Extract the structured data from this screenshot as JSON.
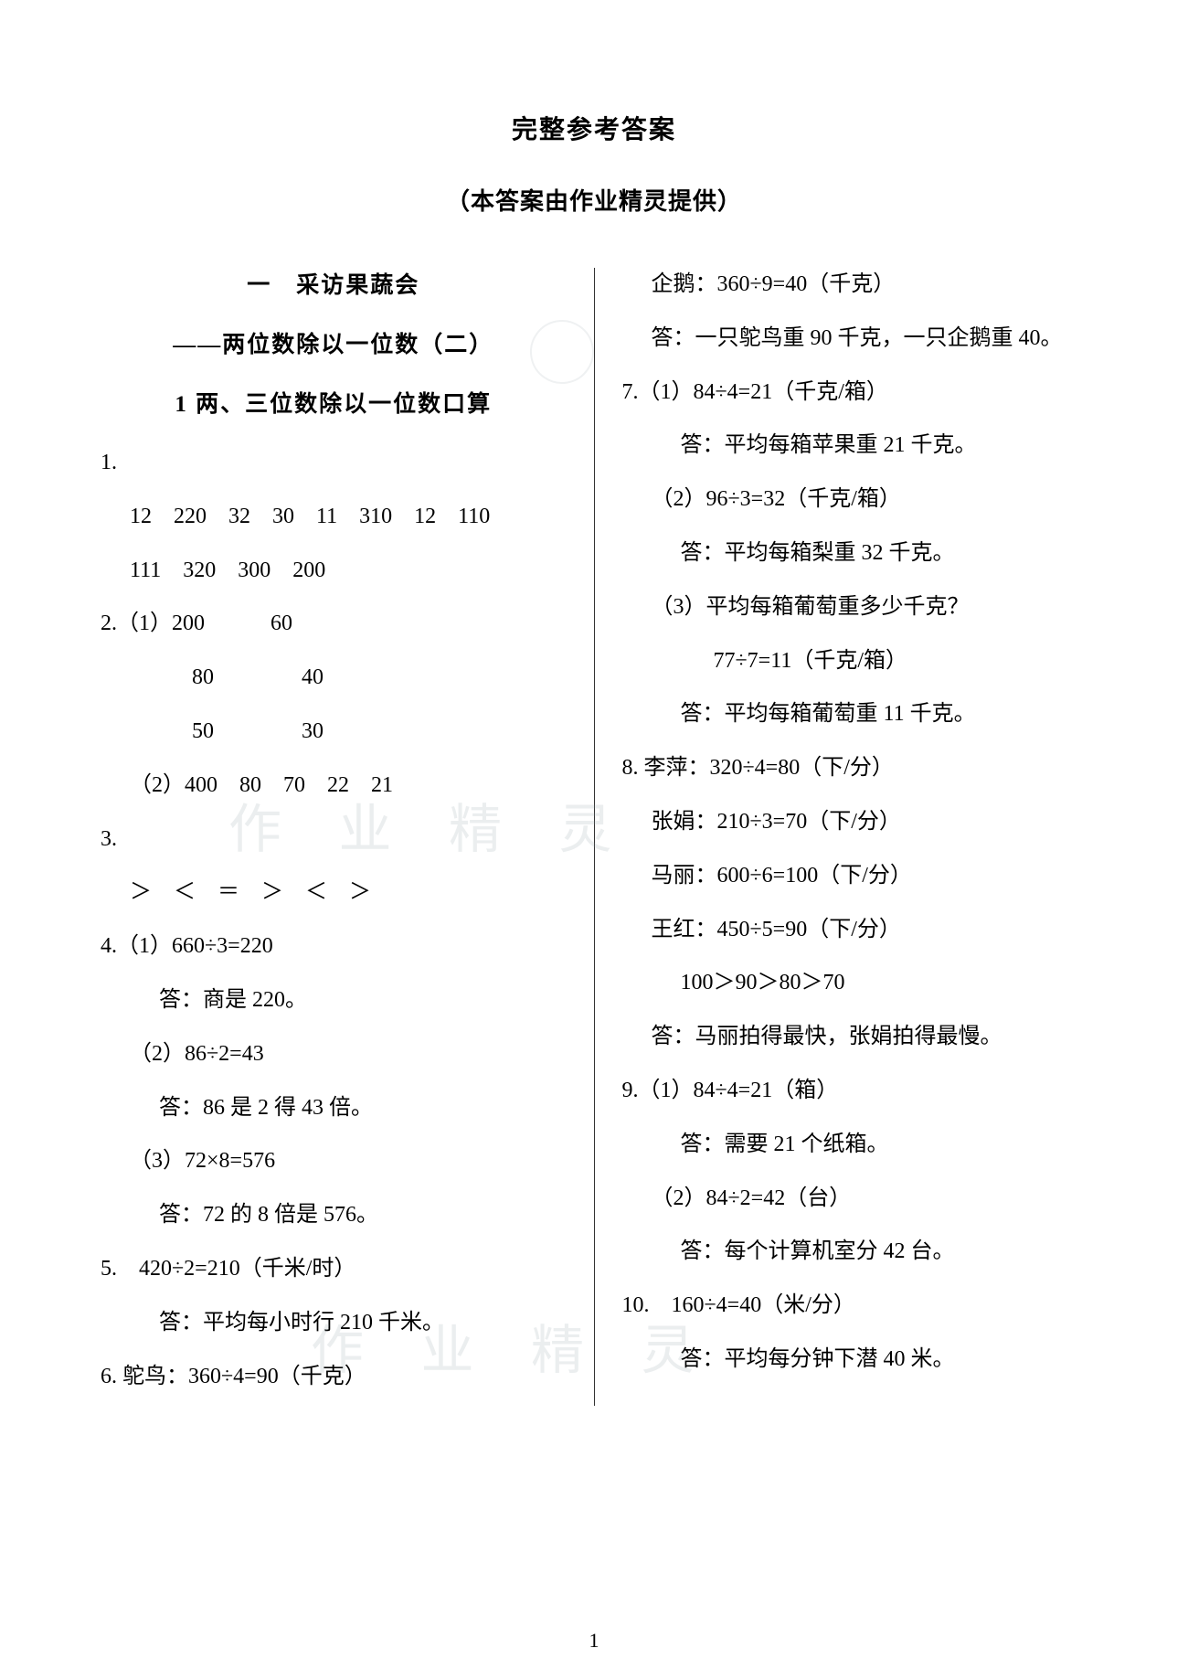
{
  "title": "完整参考答案",
  "subtitle": "（本答案由作业精灵提供）",
  "watermark": "作 业 精 灵",
  "pagenum": "1",
  "left": {
    "h1": "一　采访果蔬会",
    "h2": "——两位数除以一位数（二）",
    "h3": "1 两、三位数除以一位数口算",
    "q1_label": "1.",
    "q1_row1": "12　220　32　30　11　310　12　110",
    "q1_row2": "111　320　300　200",
    "q2_label": "2.（1）200　　　60",
    "q2_row2": "80　　　　40",
    "q2_row3": "50　　　　30",
    "q2_row4": "（2）400　80　70　22　21",
    "q3_label": "3.",
    "q3_row1": "＞　＜　＝　＞　＜　＞",
    "q4_label": "4.（1）660÷3=220",
    "q4_a1": "答：商是 220。",
    "q4_2": "（2）86÷2=43",
    "q4_a2": "答：86 是 2 得 43 倍。",
    "q4_3": "（3）72×8=576",
    "q4_a3": "答：72 的 8 倍是 576。",
    "q5": "5.　420÷2=210（千米/时）",
    "q5_a": "答：平均每小时行 210 千米。",
    "q6": "6. 鸵鸟：360÷4=90（千克）"
  },
  "right": {
    "r1": "企鹅：360÷9=40（千克）",
    "r1_a": "答：一只鸵鸟重 90 千克，一只企鹅重 40。",
    "q7_1": "7.（1）84÷4=21（千克/箱）",
    "q7_1a": "答：平均每箱苹果重 21 千克。",
    "q7_2": "（2）96÷3=32（千克/箱）",
    "q7_2a": "答：平均每箱梨重 32 千克。",
    "q7_3": "（3）平均每箱葡萄重多少千克？",
    "q7_3b": "77÷7=11（千克/箱）",
    "q7_3a": "答：平均每箱葡萄重 11 千克。",
    "q8": "8. 李萍：320÷4=80（下/分）",
    "q8_2": "张娟：210÷3=70（下/分）",
    "q8_3": "马丽：600÷6=100（下/分）",
    "q8_4": "王红：450÷5=90（下/分）",
    "q8_5": "100＞90＞80＞70",
    "q8_a": "答：马丽拍得最快，张娟拍得最慢。",
    "q9_1": "9.（1）84÷4=21（箱）",
    "q9_1a": "答：需要 21 个纸箱。",
    "q9_2": "（2）84÷2=42（台）",
    "q9_2a": "答：每个计算机室分 42 台。",
    "q10": "10.　160÷4=40（米/分）",
    "q10_a": "答：平均每分钟下潜 40 米。"
  }
}
